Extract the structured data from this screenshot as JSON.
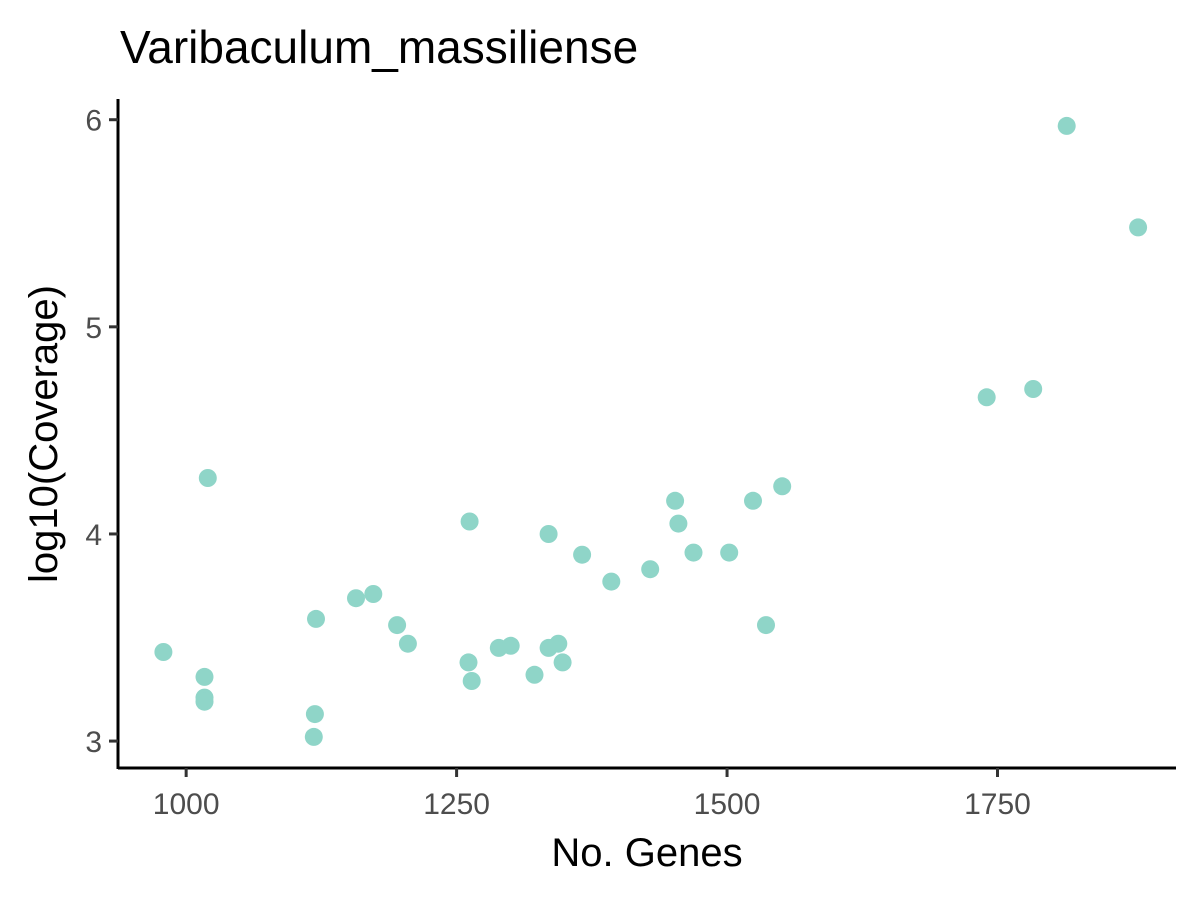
{
  "chart_data": {
    "type": "scatter",
    "title": "Varibaculum_massiliense",
    "xlabel": "No. Genes",
    "ylabel": "log10(Coverage)",
    "xlim": [
      937,
      1915
    ],
    "ylim": [
      2.87,
      6.1
    ],
    "x_ticks": [
      1000,
      1250,
      1500,
      1750
    ],
    "y_ticks": [
      3,
      4,
      5,
      6
    ],
    "grid": false,
    "legend": "none",
    "point_color": "#8fd5c8",
    "points": [
      {
        "x": 979,
        "y": 3.43
      },
      {
        "x": 1017,
        "y": 3.31
      },
      {
        "x": 1017,
        "y": 3.21
      },
      {
        "x": 1017,
        "y": 3.19
      },
      {
        "x": 1020,
        "y": 4.27
      },
      {
        "x": 1120,
        "y": 3.59
      },
      {
        "x": 1119,
        "y": 3.13
      },
      {
        "x": 1118,
        "y": 3.02
      },
      {
        "x": 1157,
        "y": 3.69
      },
      {
        "x": 1173,
        "y": 3.71
      },
      {
        "x": 1195,
        "y": 3.56
      },
      {
        "x": 1205,
        "y": 3.47
      },
      {
        "x": 1262,
        "y": 4.06
      },
      {
        "x": 1261,
        "y": 3.38
      },
      {
        "x": 1264,
        "y": 3.29
      },
      {
        "x": 1289,
        "y": 3.45
      },
      {
        "x": 1300,
        "y": 3.46
      },
      {
        "x": 1322,
        "y": 3.32
      },
      {
        "x": 1335,
        "y": 4.0
      },
      {
        "x": 1335,
        "y": 3.45
      },
      {
        "x": 1344,
        "y": 3.47
      },
      {
        "x": 1348,
        "y": 3.38
      },
      {
        "x": 1366,
        "y": 3.9
      },
      {
        "x": 1393,
        "y": 3.77
      },
      {
        "x": 1429,
        "y": 3.83
      },
      {
        "x": 1452,
        "y": 4.16
      },
      {
        "x": 1455,
        "y": 4.05
      },
      {
        "x": 1469,
        "y": 3.91
      },
      {
        "x": 1502,
        "y": 3.91
      },
      {
        "x": 1524,
        "y": 4.16
      },
      {
        "x": 1536,
        "y": 3.56
      },
      {
        "x": 1551,
        "y": 4.23
      },
      {
        "x": 1740,
        "y": 4.66
      },
      {
        "x": 1783,
        "y": 4.7
      },
      {
        "x": 1814,
        "y": 5.97
      },
      {
        "x": 1880,
        "y": 5.48
      }
    ]
  }
}
